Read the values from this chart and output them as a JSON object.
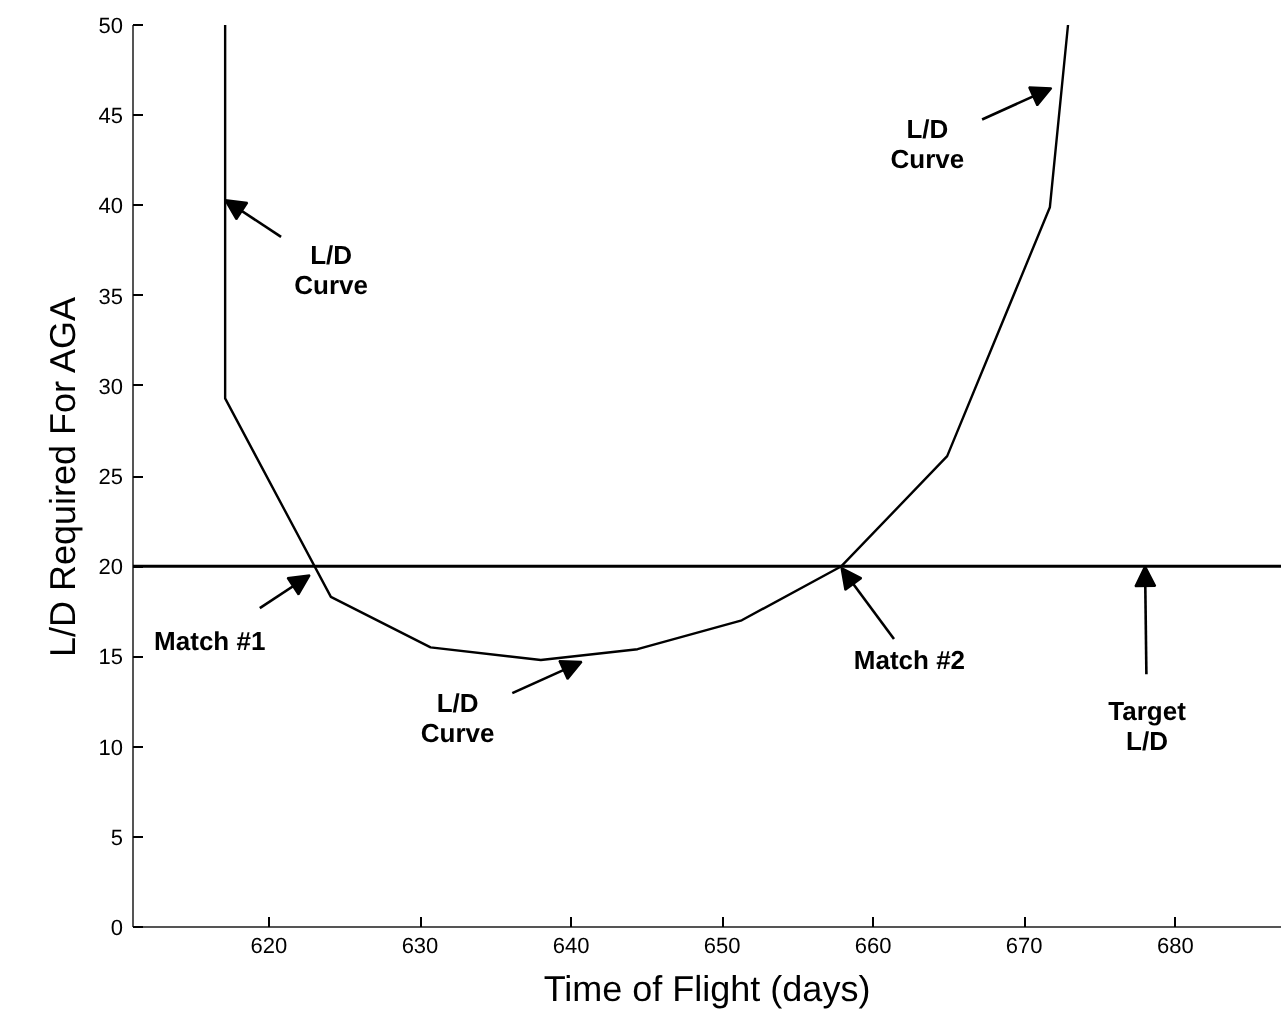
{
  "chart_data": {
    "type": "line",
    "xlabel": "Time of Flight (days)",
    "ylabel": "L/D Required For AGA",
    "xlim": [
      611,
      687
    ],
    "ylim": [
      0,
      50
    ],
    "xticks": [
      620,
      630,
      640,
      650,
      660,
      670,
      680
    ],
    "yticks": [
      0,
      5,
      10,
      15,
      20,
      25,
      30,
      35,
      40,
      45,
      50
    ],
    "grid": false,
    "marker": "none",
    "line_style": "solid",
    "series": [
      {
        "color": "#000000",
        "x": [
          617.1,
          617.1,
          624.1,
          630.7,
          638.0,
          644.4,
          651.3,
          657.9,
          664.9,
          671.7,
          672.9
        ],
        "values": [
          50,
          29.3,
          18.3,
          15.5,
          14.8,
          15.4,
          17.0,
          20.0,
          26.1,
          39.9,
          50
        ]
      }
    ],
    "ref_lines": [
      {
        "axis": "y",
        "value": 20,
        "color": "#000000"
      }
    ],
    "annotations": [
      {
        "text": "L/D\nCurve",
        "x": 617.1,
        "y": 40.3
      },
      {
        "text": "Match #1",
        "x": 622.7,
        "y": 19.5
      },
      {
        "text": "L/D\nCurve",
        "x": 640.7,
        "y": 14.7
      },
      {
        "text": "Match #2",
        "x": 657.9,
        "y": 19.9
      },
      {
        "text": "Target\nL/D",
        "x": 678.0,
        "y": 20
      },
      {
        "text": "L/D\nCurve",
        "x": 671.8,
        "y": 46.5
      }
    ]
  }
}
